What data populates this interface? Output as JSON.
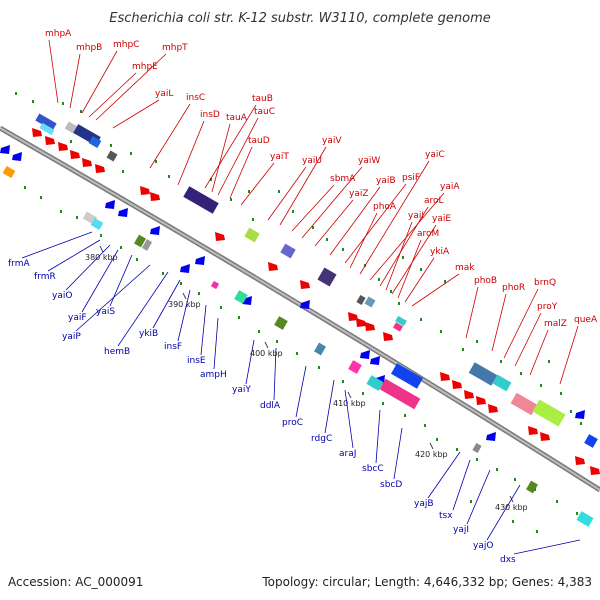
{
  "title": "Escherichia coli str. K-12 substr. W3110, complete genome",
  "footer": {
    "accession": "Accession: AC_000091",
    "topology": "Topology: circular; Length: 4,646,332 bp; Genes: 4,383"
  },
  "colors": {
    "forward_genes": "#ee0000",
    "reverse_genes": "#0000ee",
    "forward_labels": "#cc0000",
    "reverse_labels": "#0000aa",
    "backbone": "#888888",
    "rna_markers": "#228822"
  },
  "kbp_ticks": [
    "380 kbp",
    "390 kbp",
    "400 kbp",
    "410 kbp",
    "420 kbp",
    "430 kbp"
  ],
  "genes_top": [
    "mhpA",
    "mhpB",
    "mhpC",
    "mhpT",
    "mhpE",
    "yaiL",
    "insC",
    "insD",
    "tauB",
    "tauA",
    "tauC",
    "tauD",
    "yaiT",
    "yaiU",
    "yaiV",
    "sbmA",
    "yaiW",
    "yaiZ",
    "yaiB",
    "psiF",
    "phoA",
    "yaiC",
    "yaiA",
    "aroL",
    "yaiI",
    "yaiE",
    "aroM",
    "ykiA",
    "mak",
    "phoB",
    "phoR",
    "brnQ",
    "proY",
    "malZ",
    "queA"
  ],
  "genes_bottom": [
    "frmA",
    "frmR",
    "yaiO",
    "yaiF",
    "yaiS",
    "yaiP",
    "hemB",
    "ykiB",
    "insF",
    "insE",
    "ampH",
    "yaiY",
    "ddlA",
    "proC",
    "rdgC",
    "araJ",
    "sbcC",
    "sbcD",
    "yajB",
    "tsx",
    "yajI",
    "yajO",
    "dxs"
  ]
}
